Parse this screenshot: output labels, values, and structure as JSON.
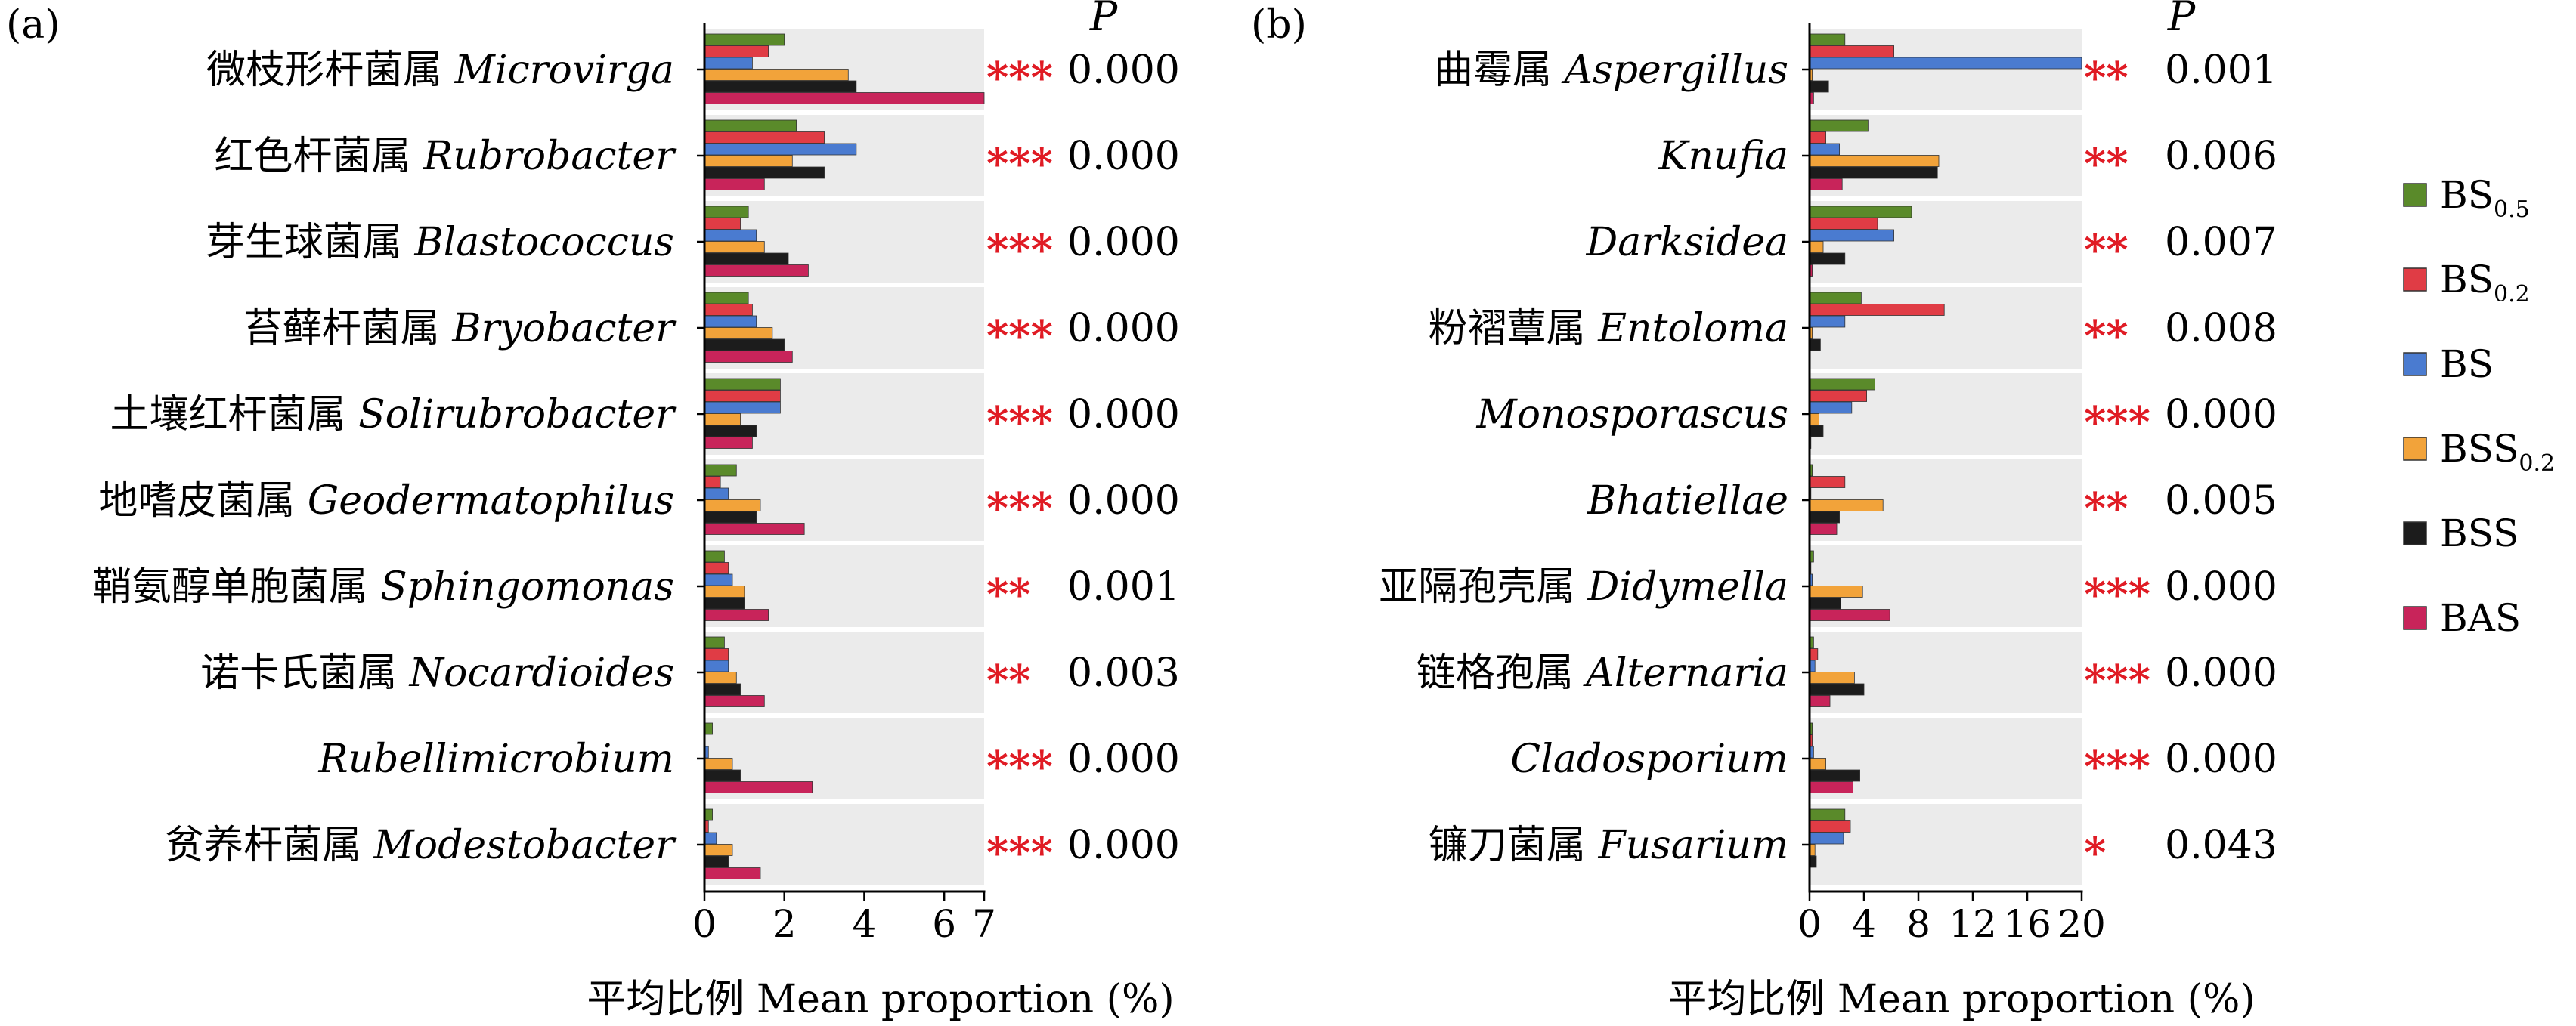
{
  "series_colors": {
    "BS0.5": "#5a8a2a",
    "BS0.2": "#e03c45",
    "BS": "#4a7bd0",
    "BSS0.2": "#f2a33a",
    "BSS": "#1c1c1c",
    "BAS": "#c8245a"
  },
  "legend": [
    {
      "key": "BS0.5",
      "base": "BS",
      "sub": "0.5"
    },
    {
      "key": "BS0.2",
      "base": "BS",
      "sub": "0.2"
    },
    {
      "key": "BS",
      "base": "BS",
      "sub": ""
    },
    {
      "key": "BSS0.2",
      "base": "BSS",
      "sub": "0.2"
    },
    {
      "key": "BSS",
      "base": "BSS",
      "sub": ""
    },
    {
      "key": "BAS",
      "base": "BAS",
      "sub": ""
    }
  ],
  "chart_data": [
    {
      "type": "bar",
      "panel_label": "(a)",
      "p_header": "P",
      "xlabel_cn": "平均比例",
      "xlabel": "Mean proportion (%)",
      "xlim": [
        0,
        7
      ],
      "xticks": [
        "0",
        "2",
        "4",
        "6",
        "7"
      ],
      "xtick_values": [
        0,
        2,
        4,
        6,
        7
      ],
      "categories": [
        {
          "cn": "微枝形杆菌属",
          "latin": "Microvirga",
          "stars": "***",
          "p": "0.000"
        },
        {
          "cn": "红色杆菌属",
          "latin": "Rubrobacter",
          "stars": "***",
          "p": "0.000"
        },
        {
          "cn": "芽生球菌属",
          "latin": "Blastococcus",
          "stars": "***",
          "p": "0.000"
        },
        {
          "cn": "苔藓杆菌属",
          "latin": "Bryobacter",
          "stars": "***",
          "p": "0.000"
        },
        {
          "cn": "土壤红杆菌属",
          "latin": "Solirubrobacter",
          "stars": "***",
          "p": "0.000"
        },
        {
          "cn": "地嗜皮菌属",
          "latin": "Geodermatophilus",
          "stars": "***",
          "p": "0.000"
        },
        {
          "cn": "鞘氨醇单胞菌属",
          "latin": "Sphingomonas",
          "stars": "**",
          "p": "0.001"
        },
        {
          "cn": "诺卡氏菌属",
          "latin": "Nocardioides",
          "stars": "**",
          "p": "0.003"
        },
        {
          "cn": "",
          "latin": "Rubellimicrobium",
          "stars": "***",
          "p": "0.000"
        },
        {
          "cn": "贫养杆菌属",
          "latin": "Modestobacter",
          "stars": "***",
          "p": "0.000"
        }
      ],
      "series": [
        {
          "name": "BS0.5",
          "values": [
            2.0,
            2.3,
            1.1,
            1.1,
            1.9,
            0.8,
            0.5,
            0.5,
            0.2,
            0.2
          ]
        },
        {
          "name": "BS0.2",
          "values": [
            1.6,
            3.0,
            0.9,
            1.2,
            1.9,
            0.4,
            0.6,
            0.6,
            0.0,
            0.1
          ]
        },
        {
          "name": "BS",
          "values": [
            1.2,
            3.8,
            1.3,
            1.3,
            1.9,
            0.6,
            0.7,
            0.6,
            0.1,
            0.3
          ]
        },
        {
          "name": "BSS0.2",
          "values": [
            3.6,
            2.2,
            1.5,
            1.7,
            0.9,
            1.4,
            1.0,
            0.8,
            0.7,
            0.7
          ]
        },
        {
          "name": "BSS",
          "values": [
            3.8,
            3.0,
            2.1,
            2.0,
            1.3,
            1.3,
            1.0,
            0.9,
            0.9,
            0.6
          ]
        },
        {
          "name": "BAS",
          "values": [
            7.0,
            1.5,
            2.6,
            2.2,
            1.2,
            2.5,
            1.6,
            1.5,
            2.7,
            1.4
          ]
        }
      ]
    },
    {
      "type": "bar",
      "panel_label": "(b)",
      "p_header": "P",
      "xlabel_cn": "平均比例",
      "xlabel": "Mean proportion (%)",
      "xlim": [
        0,
        20
      ],
      "xticks": [
        "0",
        "4",
        "8",
        "12",
        "16",
        "20"
      ],
      "xtick_values": [
        0,
        4,
        8,
        12,
        16,
        20
      ],
      "categories": [
        {
          "cn": "曲霉属",
          "latin": "Aspergillus",
          "stars": "**",
          "p": "0.001"
        },
        {
          "cn": "",
          "latin": "Knufia",
          "stars": "**",
          "p": "0.006"
        },
        {
          "cn": "",
          "latin": "Darksidea",
          "stars": "**",
          "p": "0.007"
        },
        {
          "cn": "粉褶蕈属",
          "latin": "Entoloma",
          "stars": "**",
          "p": "0.008"
        },
        {
          "cn": "",
          "latin": "Monosporascus",
          "stars": "***",
          "p": "0.000"
        },
        {
          "cn": "",
          "latin": "Bhatiellae",
          "stars": "**",
          "p": "0.005"
        },
        {
          "cn": "亚隔孢壳属",
          "latin": "Didymella",
          "stars": "***",
          "p": "0.000"
        },
        {
          "cn": "链格孢属",
          "latin": "Alternaria",
          "stars": "***",
          "p": "0.000"
        },
        {
          "cn": "",
          "latin": "Cladosporium",
          "stars": "***",
          "p": "0.000"
        },
        {
          "cn": "镰刀菌属",
          "latin": "Fusarium",
          "stars": "*",
          "p": "0.043"
        }
      ],
      "series": [
        {
          "name": "BS0.5",
          "values": [
            2.6,
            4.3,
            7.5,
            3.8,
            4.8,
            0.2,
            0.3,
            0.3,
            0.2,
            2.6
          ]
        },
        {
          "name": "BS0.2",
          "values": [
            6.2,
            1.2,
            5.0,
            9.9,
            4.2,
            2.6,
            0.1,
            0.6,
            0.2,
            3.0
          ]
        },
        {
          "name": "BS",
          "values": [
            20.0,
            2.2,
            6.2,
            2.6,
            3.1,
            0.1,
            0.2,
            0.4,
            0.3,
            2.5
          ]
        },
        {
          "name": "BSS0.2",
          "values": [
            0.2,
            9.5,
            1.0,
            0.2,
            0.7,
            5.4,
            3.9,
            3.3,
            1.2,
            0.4
          ]
        },
        {
          "name": "BSS",
          "values": [
            1.4,
            9.4,
            2.6,
            0.8,
            1.0,
            2.2,
            2.3,
            4.0,
            3.7,
            0.5
          ]
        },
        {
          "name": "BAS",
          "values": [
            0.3,
            2.4,
            0.2,
            0.0,
            0.1,
            2.0,
            5.9,
            1.5,
            3.2,
            0.0
          ]
        }
      ]
    }
  ]
}
